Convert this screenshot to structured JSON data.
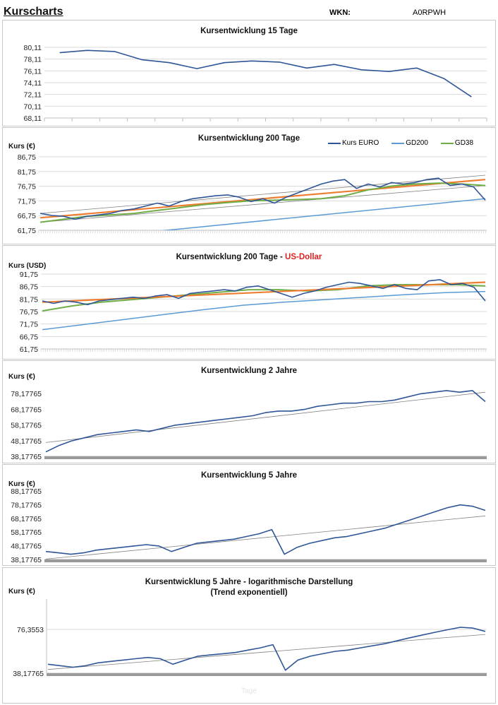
{
  "header": {
    "title": "Kurscharts",
    "wkn_label": "WKN:",
    "wkn_value": "A0RPWH"
  },
  "colors": {
    "kurs": "#2f5597",
    "gd200": "#5b9bd5",
    "gd38": "#70ad47",
    "trend": "#ed7d31",
    "channel": "#808080",
    "grid": "#d9d9d9",
    "highlight": "#e02020"
  },
  "chart_data": [
    {
      "id": "c15",
      "type": "line",
      "title": "Kursentwicklung 15 Tage",
      "ylabel": "",
      "yticks": [
        "80,11",
        "78,11",
        "76,11",
        "74,11",
        "72,11",
        "70,11",
        "68,11"
      ],
      "ylim": [
        68.11,
        80.11
      ],
      "grid": true,
      "series": [
        {
          "key": "kurs",
          "values": [
            79.2,
            79.6,
            79.4,
            78.0,
            77.5,
            76.5,
            77.5,
            77.8,
            77.6,
            76.6,
            77.2,
            76.3,
            76.0,
            76.6,
            74.8,
            71.7
          ]
        }
      ]
    },
    {
      "id": "c200",
      "type": "line",
      "title": "Kursentwicklung 200 Tage",
      "ylabel": "Kurs (€)",
      "yticks": [
        "86,75",
        "81,75",
        "76,75",
        "71,75",
        "66,75",
        "61,75"
      ],
      "ylim": [
        61.75,
        86.75
      ],
      "grid": true,
      "legend": {
        "position": "top-right",
        "entries": [
          "Kurs EURO",
          "GD200",
          "GD38"
        ]
      },
      "series": [
        {
          "key": "channel",
          "values": [
            67.5,
            80.5
          ]
        },
        {
          "key": "channel",
          "values": [
            64.5,
            77.0
          ]
        },
        {
          "key": "trend",
          "values": [
            66.0,
            79.0
          ]
        },
        {
          "key": "gd200",
          "name": "GD200",
          "values": [
            57.5,
            72.5
          ]
        },
        {
          "key": "gd38",
          "name": "GD38",
          "values": [
            64.5,
            65.5,
            66.5,
            67.0,
            67.5,
            68.5,
            69.5,
            70.5,
            71.2,
            71.8,
            72.0,
            72.2,
            72.5,
            73.5,
            75.5,
            76.8,
            77.5,
            77.8,
            77.5,
            77.0
          ]
        },
        {
          "key": "kurs",
          "name": "Kurs EURO",
          "values": [
            67.5,
            66.8,
            66.5,
            65.5,
            66.5,
            67,
            67.5,
            68.5,
            69,
            70,
            71,
            70,
            71.5,
            72.5,
            73,
            73.5,
            73.8,
            73,
            71.5,
            72.5,
            71,
            73,
            74.5,
            76,
            77.5,
            78.5,
            79,
            76,
            77.5,
            76.5,
            78,
            77.5,
            78,
            79,
            79.5,
            77,
            77.5,
            76.5,
            72
          ]
        }
      ]
    },
    {
      "id": "cusd",
      "type": "line",
      "title": "Kursentwicklung 200 Tage - ",
      "title_highlight": "US-Dollar",
      "ylabel": "Kurs (USD)",
      "yticks": [
        "91,75",
        "86,75",
        "81,75",
        "76,75",
        "71,75",
        "66,75",
        "61,75"
      ],
      "ylim": [
        61.75,
        91.75
      ],
      "grid": true,
      "series": [
        {
          "key": "gd200",
          "values": [
            69.5,
            71.5,
            73.5,
            75.5,
            77.5,
            79.3,
            80.5,
            81.5,
            82.5,
            83.5,
            84.3,
            84.8
          ]
        },
        {
          "key": "gd38",
          "values": [
            77,
            79,
            80.5,
            81.5,
            82.5,
            83.5,
            84.5,
            85.5,
            85.5,
            85,
            85.5,
            87,
            87.5,
            87.5,
            87.5,
            87
          ]
        },
        {
          "key": "trend",
          "values": [
            80.5,
            88.5
          ]
        },
        {
          "key": "kurs",
          "values": [
            81,
            80,
            81,
            80.5,
            79.5,
            81,
            81.5,
            82,
            82.5,
            82,
            83,
            83.5,
            82,
            84,
            84.5,
            85,
            85.5,
            85,
            86.5,
            87,
            85.5,
            84,
            82.5,
            84,
            85,
            86.5,
            87.5,
            88.5,
            88,
            87,
            86,
            87.5,
            86,
            85.5,
            89,
            89.5,
            87.5,
            88,
            86.5,
            81
          ]
        }
      ]
    },
    {
      "id": "c2j",
      "type": "line",
      "title": "Kursentwicklung 2 Jahre",
      "ylabel": "Kurs (€)",
      "yticks": [
        "78,17765",
        "68,17765",
        "58,17765",
        "48,17765",
        "38,17765"
      ],
      "ylim": [
        38.17765,
        78.17765
      ],
      "grid": false,
      "series": [
        {
          "key": "channel",
          "values": [
            47,
            79
          ]
        },
        {
          "key": "kurs",
          "values": [
            41,
            45,
            48,
            50,
            52,
            53,
            54,
            55,
            54,
            56,
            58,
            59,
            60,
            61,
            62,
            63,
            64,
            66,
            67,
            67,
            68,
            70,
            71,
            72,
            72,
            73,
            73,
            74,
            76,
            78,
            79,
            80,
            79,
            80,
            73
          ]
        }
      ]
    },
    {
      "id": "c5j",
      "type": "line",
      "title": "Kursentwicklung 5 Jahre",
      "ylabel": "Kurs (€)",
      "yticks": [
        "88,17765",
        "78,17765",
        "68,17765",
        "58,17765",
        "48,17765",
        "38,17765"
      ],
      "ylim": [
        38.17765,
        88.17765
      ],
      "grid": false,
      "series": [
        {
          "key": "channel",
          "values": [
            38.5,
            70
          ]
        },
        {
          "key": "kurs",
          "values": [
            44,
            43,
            42,
            43,
            45,
            46,
            47,
            48,
            49,
            48,
            44,
            47,
            50,
            51,
            52,
            53,
            55,
            57,
            60,
            42,
            47,
            50,
            52,
            54,
            55,
            57,
            59,
            61,
            64,
            67,
            70,
            73,
            76,
            78,
            77,
            74
          ]
        }
      ]
    },
    {
      "id": "clog",
      "type": "line",
      "title": "Kursentwicklung 5 Jahre - logarithmische Darstellung",
      "subtitle": "(Trend exponentiell)",
      "ylabel": "Kurs (€)",
      "xlabel": "Tage",
      "yscale": "log",
      "yticks": [
        "76,3553",
        "38,17765"
      ],
      "grid": true,
      "series": [
        {
          "key": "channel",
          "values": [
            40.5,
            70.5
          ]
        },
        {
          "key": "kurs",
          "values": [
            44,
            43,
            42,
            43,
            45,
            46,
            47,
            48,
            49,
            48,
            44,
            47,
            50,
            51,
            52,
            53,
            55,
            57,
            60,
            40,
            47,
            50,
            52,
            54,
            55,
            57,
            59,
            61,
            64,
            67,
            70,
            73,
            76,
            79,
            78,
            74
          ]
        }
      ]
    }
  ]
}
